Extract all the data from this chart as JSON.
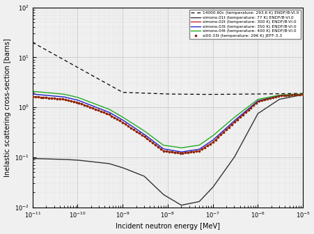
{
  "title": "",
  "xlabel": "Incident neutron energy [MeV]",
  "ylabel": "Inelastic scattering cross-section [barns]",
  "xlim": [
    1e-11,
    1e-05
  ],
  "ylim": [
    0.01,
    100
  ],
  "legend": [
    {
      "label": "14000.60c (temperature: 293.6 K) ENDF/B-VI.0",
      "color": "#000000",
      "style": "dashed",
      "lw": 0.9
    },
    {
      "label": "simono.01t (temperature: 77 K) ENDF/B-VI.0",
      "color": "#333333",
      "style": "solid",
      "lw": 1.0
    },
    {
      "label": "simono.02t (temperature: 300 K) ENDF/B-VI.0",
      "color": "#cc2222",
      "style": "solid",
      "lw": 1.0
    },
    {
      "label": "simono.03t (temperature: 350 K) ENDF/B-VI.0",
      "color": "#2222cc",
      "style": "solid",
      "lw": 1.0
    },
    {
      "label": "simono.04t (temperature: 400 K) ENDF/B-VI.0",
      "color": "#22aa22",
      "style": "solid",
      "lw": 1.0
    },
    {
      "label": "si00.33t (temperature: 296 K) JEFF-3.3",
      "color": "#8B2500",
      "style": "dots",
      "lw": 1.0
    }
  ],
  "background_color": "#f0f0f0"
}
